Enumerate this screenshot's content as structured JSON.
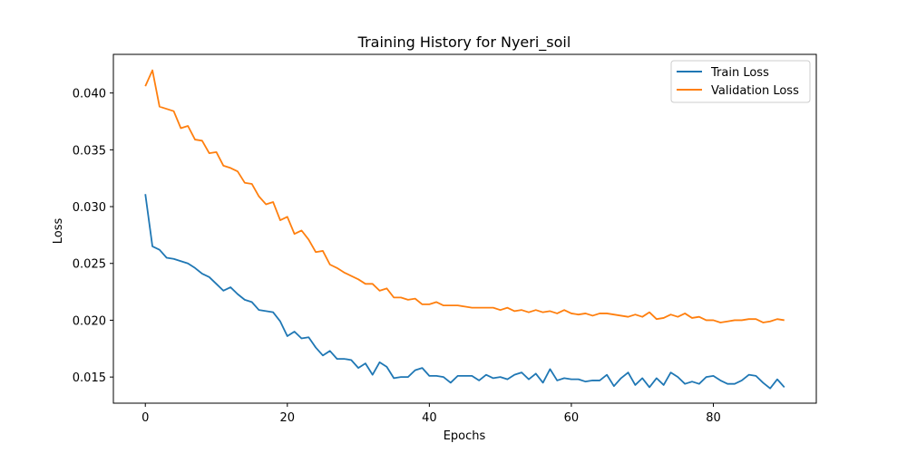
{
  "chart_data": {
    "type": "line",
    "title": "Training History for Nyeri_soil",
    "xlabel": "Epochs",
    "ylabel": "Loss",
    "xlim": [
      -4.5,
      94.5
    ],
    "ylim": [
      0.0127,
      0.0434
    ],
    "x_ticks": [
      0,
      20,
      40,
      60,
      80
    ],
    "y_ticks": [
      0.015,
      0.02,
      0.025,
      0.03,
      0.035,
      0.04
    ],
    "grid": false,
    "legend_position": "top-right",
    "x": [
      0,
      1,
      2,
      3,
      4,
      5,
      6,
      7,
      8,
      9,
      10,
      11,
      12,
      13,
      14,
      15,
      16,
      17,
      18,
      19,
      20,
      21,
      22,
      23,
      24,
      25,
      26,
      27,
      28,
      29,
      30,
      31,
      32,
      33,
      34,
      35,
      36,
      37,
      38,
      39,
      40,
      41,
      42,
      43,
      44,
      45,
      46,
      47,
      48,
      49,
      50,
      51,
      52,
      53,
      54,
      55,
      56,
      57,
      58,
      59,
      60,
      61,
      62,
      63,
      64,
      65,
      66,
      67,
      68,
      69,
      70,
      71,
      72,
      73,
      74,
      75,
      76,
      77,
      78,
      79,
      80,
      81,
      82,
      83,
      84,
      85,
      86,
      87,
      88,
      89,
      90
    ],
    "series": [
      {
        "name": "Train Loss",
        "color": "#1f77b4",
        "values": [
          0.0311,
          0.0265,
          0.0262,
          0.0255,
          0.0254,
          0.0252,
          0.025,
          0.0246,
          0.0241,
          0.0238,
          0.0232,
          0.0226,
          0.0229,
          0.0223,
          0.0218,
          0.0216,
          0.0209,
          0.0208,
          0.0207,
          0.0199,
          0.0186,
          0.019,
          0.0184,
          0.0185,
          0.0176,
          0.0169,
          0.0173,
          0.0166,
          0.0166,
          0.0165,
          0.0158,
          0.0162,
          0.0152,
          0.0163,
          0.0159,
          0.0149,
          0.015,
          0.015,
          0.0156,
          0.0158,
          0.0151,
          0.0151,
          0.015,
          0.0145,
          0.0151,
          0.0151,
          0.0151,
          0.0147,
          0.0152,
          0.0149,
          0.015,
          0.0148,
          0.0152,
          0.0154,
          0.0148,
          0.0153,
          0.0145,
          0.0157,
          0.0147,
          0.0149,
          0.0148,
          0.0148,
          0.0146,
          0.0147,
          0.0147,
          0.0152,
          0.0142,
          0.0149,
          0.0154,
          0.0143,
          0.0149,
          0.0141,
          0.0149,
          0.0143,
          0.0154,
          0.015,
          0.0144,
          0.0146,
          0.0144,
          0.015,
          0.0151,
          0.0147,
          0.0144,
          0.0144,
          0.0147,
          0.0152,
          0.0151,
          0.0145,
          0.014,
          0.0148,
          0.0141
        ]
      },
      {
        "name": "Validation Loss",
        "color": "#ff7f0e",
        "values": [
          0.0406,
          0.042,
          0.0388,
          0.0386,
          0.0384,
          0.0369,
          0.0371,
          0.0359,
          0.0358,
          0.0347,
          0.0348,
          0.0336,
          0.0334,
          0.0331,
          0.0321,
          0.032,
          0.0309,
          0.0302,
          0.0304,
          0.0288,
          0.0291,
          0.0276,
          0.0279,
          0.0271,
          0.026,
          0.0261,
          0.0249,
          0.0246,
          0.0242,
          0.0239,
          0.0236,
          0.0232,
          0.0232,
          0.0226,
          0.0228,
          0.022,
          0.022,
          0.0218,
          0.0219,
          0.0214,
          0.0214,
          0.0216,
          0.0213,
          0.0213,
          0.0213,
          0.0212,
          0.0211,
          0.0211,
          0.0211,
          0.0211,
          0.0209,
          0.0211,
          0.0208,
          0.0209,
          0.0207,
          0.0209,
          0.0207,
          0.0208,
          0.0206,
          0.0209,
          0.0206,
          0.0205,
          0.0206,
          0.0204,
          0.0206,
          0.0206,
          0.0205,
          0.0204,
          0.0203,
          0.0205,
          0.0203,
          0.0207,
          0.0201,
          0.0202,
          0.0205,
          0.0203,
          0.0206,
          0.0202,
          0.0203,
          0.02,
          0.02,
          0.0198,
          0.0199,
          0.02,
          0.02,
          0.0201,
          0.0201,
          0.0198,
          0.0199,
          0.0201,
          0.02
        ]
      }
    ]
  }
}
